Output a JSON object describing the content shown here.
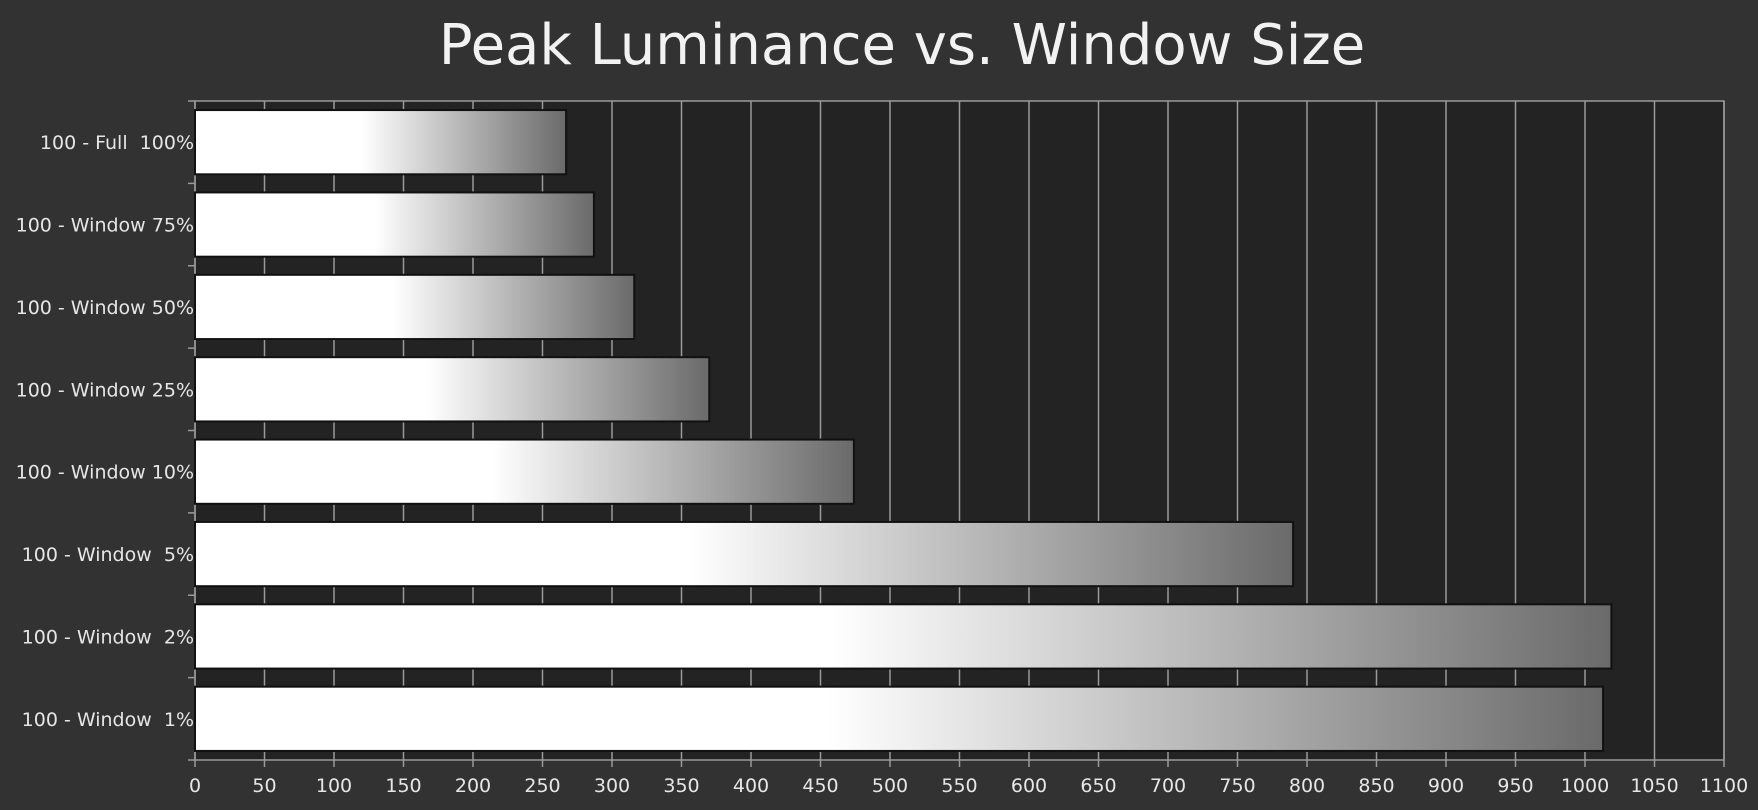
{
  "chart_data": {
    "type": "bar",
    "orientation": "horizontal",
    "title": "Peak Luminance vs. Window Size",
    "xlabel": "",
    "ylabel": "",
    "categories": [
      "100 - Full  100%",
      "100 - Window 75%",
      "100 - Window 50%",
      "100 - Window 25%",
      "100 - Window 10%",
      "100 - Window  5%",
      "100 - Window  2%",
      "100 - Window  1%"
    ],
    "values": [
      267,
      287,
      316,
      370,
      474,
      790,
      1019,
      1013
    ],
    "xlim": [
      0,
      1100
    ],
    "xticks": [
      0,
      50,
      100,
      150,
      200,
      250,
      300,
      350,
      400,
      450,
      500,
      550,
      600,
      650,
      700,
      750,
      800,
      850,
      900,
      950,
      1000,
      1050,
      1100
    ],
    "grid": "vertical",
    "legend": "none",
    "colors": {
      "background": "#323232",
      "plot_background": "#232323",
      "gridline": "#9a9a9a",
      "bar_light": "#ffffff",
      "bar_dark": "#6a6a6a",
      "bar_outline": "#111111",
      "text": "#e6e6e6"
    }
  }
}
